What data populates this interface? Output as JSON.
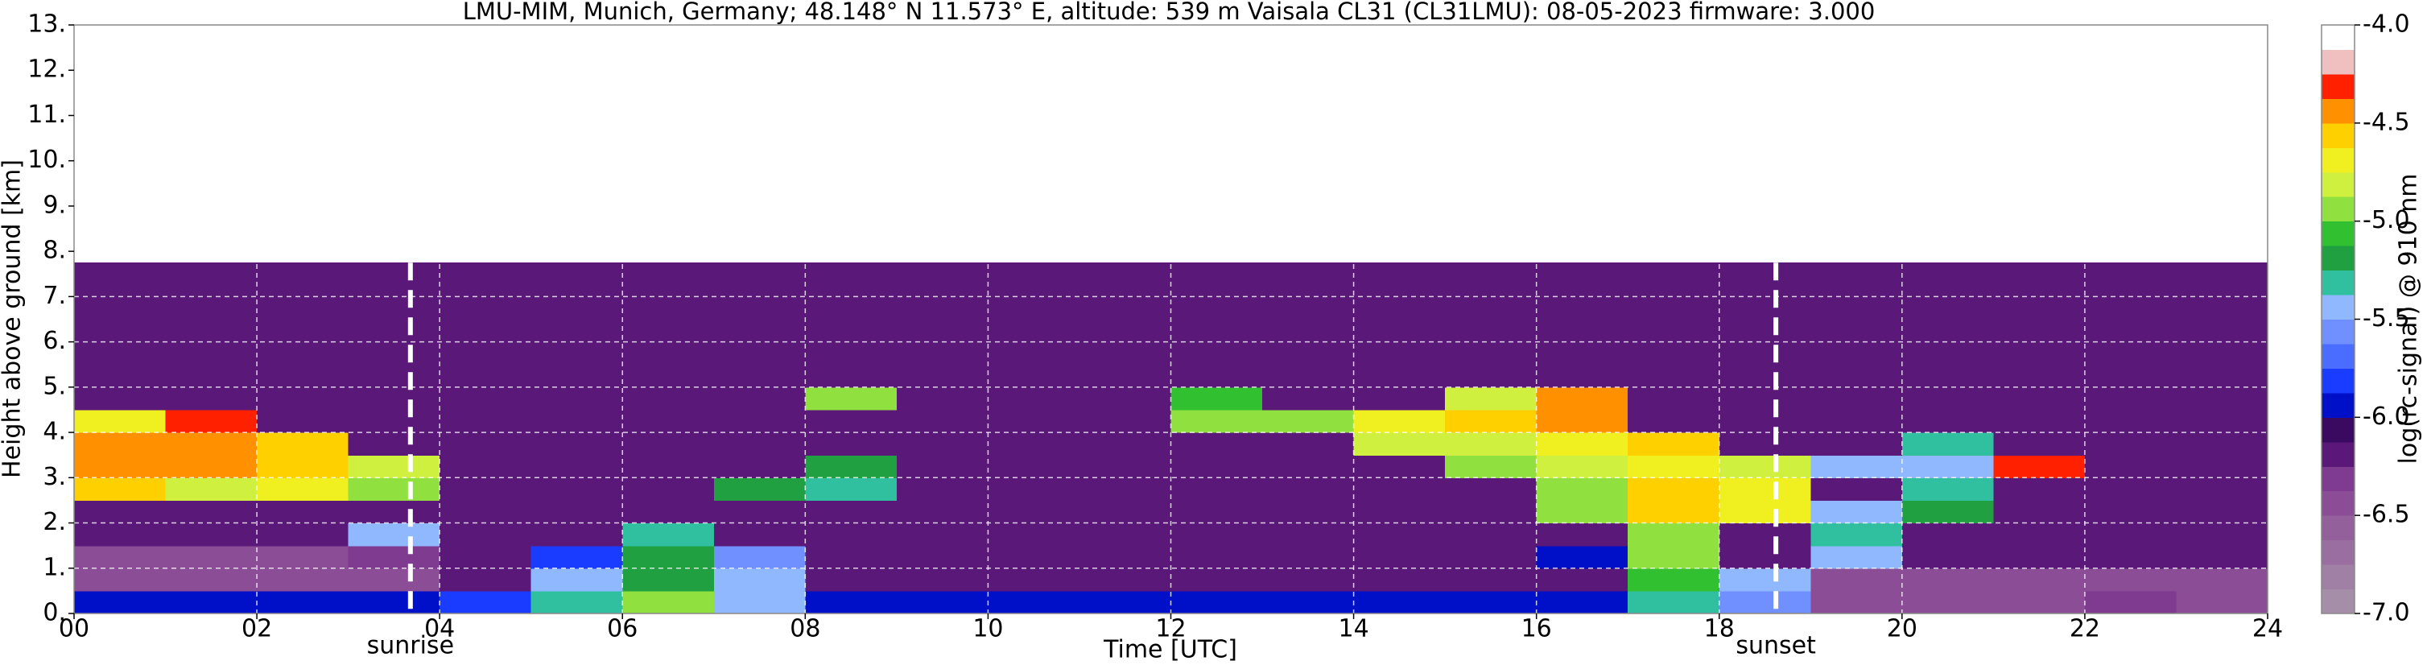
{
  "chart_data": {
    "type": "heatmap",
    "title": "LMU-MIM, Munich, Germany; 48.148° N 11.573° E, altitude: 539 m    Vaisala CL31 (CL31LMU): 08-05-2023    firmware: 3.000",
    "xlabel": "Time [UTC]",
    "ylabel": "Height above ground [km]",
    "colorbar_label": "log(rc-signal) @ 910 nm",
    "xlim": [
      0,
      24
    ],
    "ylim": [
      0,
      13
    ],
    "xticks": [
      {
        "value": 0,
        "label": "00"
      },
      {
        "value": 2,
        "label": "02"
      },
      {
        "value": 4,
        "label": "04"
      },
      {
        "value": 6,
        "label": "06"
      },
      {
        "value": 8,
        "label": "08"
      },
      10,
      12,
      14,
      16,
      18,
      20,
      22,
      24
    ],
    "yticks": [
      {
        "value": 0,
        "label": "0."
      },
      {
        "value": 1,
        "label": "1."
      },
      {
        "value": 2,
        "label": "2."
      },
      {
        "value": 3,
        "label": "3."
      },
      {
        "value": 4,
        "label": "4."
      },
      {
        "value": 5,
        "label": "5."
      },
      {
        "value": 6,
        "label": "6."
      },
      {
        "value": 7,
        "label": "7."
      },
      {
        "value": 8,
        "label": "8."
      },
      {
        "value": 9,
        "label": "9."
      },
      {
        "value": 10,
        "label": "10."
      },
      {
        "value": 11,
        "label": "11."
      },
      {
        "value": 12,
        "label": "12."
      },
      {
        "value": 13,
        "label": "13."
      }
    ],
    "grid": true,
    "grid_color": "#ffffff",
    "x_edges": [
      0,
      1,
      2,
      3,
      4,
      5,
      6,
      7,
      8,
      9,
      10,
      11,
      12,
      13,
      14,
      15,
      16,
      17,
      18,
      19,
      20,
      21,
      22,
      23,
      24
    ],
    "y_edges": [
      0,
      0.5,
      1,
      1.5,
      2,
      2.5,
      3,
      3.5,
      4,
      4.5,
      5,
      5.5,
      6,
      6.5,
      7,
      7.5,
      7.75
    ],
    "z": [
      [
        -5.9,
        -5.9,
        -5.9,
        -5.9,
        -5.8,
        -5.3,
        -4.9,
        -5.4,
        -5.9,
        -5.9,
        -6.0,
        -6.0,
        -6.0,
        -6.0,
        -6.0,
        -6.0,
        -6.0,
        -5.3,
        -5.6,
        -6.4,
        -6.4,
        -6.4,
        -6.3,
        -6.4
      ],
      [
        -6.4,
        -6.4,
        -6.4,
        -6.4,
        -6.2,
        -5.4,
        -5.2,
        -5.4,
        -6.2,
        -6.2,
        -6.2,
        -6.2,
        -6.2,
        -6.2,
        -6.2,
        -6.2,
        -6.2,
        -5.1,
        -5.4,
        -6.5,
        -6.5,
        -6.5,
        -6.5,
        -6.5
      ],
      [
        -6.5,
        -6.5,
        -6.5,
        -6.3,
        -6.2,
        -5.8,
        -5.2,
        -5.6,
        -6.2,
        -6.2,
        -6.2,
        -6.2,
        -6.2,
        -6.2,
        -6.2,
        -6.2,
        -6.0,
        -5.0,
        -6.2,
        -5.4,
        -6.2,
        -6.2,
        -6.2,
        -6.2
      ],
      [
        -6.2,
        -6.2,
        -6.2,
        -5.5,
        -6.2,
        -6.2,
        -5.3,
        -6.2,
        -6.2,
        -6.2,
        -6.2,
        -6.2,
        -6.2,
        -6.2,
        -6.2,
        -6.2,
        -6.2,
        -5.0,
        -6.2,
        -5.3,
        -6.2,
        -6.2,
        -6.2,
        -6.2
      ],
      [
        -6.2,
        -6.2,
        -6.2,
        -6.2,
        -6.2,
        -6.2,
        -6.2,
        -6.2,
        -6.2,
        -6.2,
        -6.2,
        -6.2,
        -6.2,
        -6.2,
        -6.2,
        -6.2,
        -4.9,
        -4.6,
        -4.7,
        -5.4,
        -5.2,
        -6.2,
        -6.2,
        -6.2
      ],
      [
        -4.6,
        -4.8,
        -4.7,
        -5.0,
        -6.2,
        -6.2,
        -6.2,
        -5.2,
        -5.3,
        -6.2,
        -6.2,
        -6.2,
        -6.2,
        -6.2,
        -6.2,
        -6.2,
        -5.0,
        -4.6,
        -4.7,
        -6.2,
        -5.3,
        -6.2,
        -6.2,
        -6.2
      ],
      [
        -4.5,
        -4.5,
        -4.6,
        -4.8,
        -6.2,
        -6.2,
        -6.2,
        -6.2,
        -5.2,
        -6.2,
        -6.2,
        -6.2,
        -6.2,
        -6.2,
        -6.2,
        -5.0,
        -4.8,
        -4.7,
        -4.8,
        -5.4,
        -5.5,
        -4.3,
        -6.2,
        -6.2
      ],
      [
        -4.5,
        -4.4,
        -4.6,
        -6.2,
        -6.2,
        -6.2,
        -6.2,
        -6.2,
        -6.2,
        -6.2,
        -6.2,
        -6.2,
        -6.2,
        -6.2,
        -4.8,
        -4.8,
        -4.7,
        -4.6,
        -6.2,
        -6.2,
        -5.3,
        -6.2,
        -6.2,
        -6.2
      ],
      [
        -4.7,
        -4.3,
        -6.2,
        -6.2,
        -6.2,
        -6.2,
        -6.2,
        -6.2,
        -6.2,
        -6.2,
        -6.2,
        -6.2,
        -5.0,
        -4.9,
        -4.7,
        -4.6,
        -4.4,
        -6.2,
        -6.2,
        -6.2,
        -6.2,
        -6.2,
        -6.2,
        -6.2
      ],
      [
        -6.2,
        -6.2,
        -6.2,
        -6.2,
        -6.2,
        -6.2,
        -6.2,
        -6.2,
        -4.9,
        -6.2,
        -6.2,
        -6.2,
        -5.1,
        -6.2,
        -6.2,
        -4.8,
        -4.5,
        -6.2,
        -6.2,
        -6.2,
        -6.2,
        -6.2,
        -6.2,
        -6.2
      ],
      [
        -6.2,
        -6.2,
        -6.2,
        -6.2,
        -6.2,
        -6.2,
        -6.2,
        -6.2,
        -6.2,
        -6.2,
        -6.2,
        -6.2,
        -6.2,
        -6.2,
        -6.2,
        -6.2,
        -6.2,
        -6.2,
        -6.2,
        -6.2,
        -6.2,
        -6.2,
        -6.2,
        -6.2
      ],
      [
        -6.2,
        -6.2,
        -6.2,
        -6.2,
        -6.2,
        -6.2,
        -6.2,
        -6.2,
        -6.2,
        -6.2,
        -6.2,
        -6.2,
        -6.2,
        -6.2,
        -6.2,
        -6.2,
        -6.2,
        -6.2,
        -6.2,
        -6.2,
        -6.2,
        -6.2,
        -6.2,
        -6.2
      ],
      [
        -6.2,
        -6.2,
        -6.2,
        -6.2,
        -6.2,
        -6.2,
        -6.2,
        -6.2,
        -6.2,
        -6.2,
        -6.2,
        -6.2,
        -6.2,
        -6.2,
        -6.2,
        -6.2,
        -6.2,
        -6.2,
        -6.2,
        -6.2,
        -6.2,
        -6.2,
        -6.2,
        -6.2
      ],
      [
        -6.2,
        -6.2,
        -6.2,
        -6.2,
        -6.2,
        -6.2,
        -6.2,
        -6.2,
        -6.2,
        -6.2,
        -6.2,
        -6.2,
        -6.2,
        -6.2,
        -6.2,
        -6.2,
        -6.2,
        -6.2,
        -6.2,
        -6.2,
        -6.2,
        -6.2,
        -6.2,
        -6.2
      ],
      [
        -6.2,
        -6.2,
        -6.2,
        -6.2,
        -6.2,
        -6.2,
        -6.2,
        -6.2,
        -6.2,
        -6.2,
        -6.2,
        -6.2,
        -6.2,
        -6.2,
        -6.2,
        -6.2,
        -6.2,
        -6.2,
        -6.2,
        -6.2,
        -6.2,
        -6.2,
        -6.2,
        -6.2
      ],
      [
        -6.2,
        -6.2,
        -6.2,
        -6.2,
        -6.2,
        -6.2,
        -6.2,
        -6.2,
        -6.2,
        -6.2,
        -6.2,
        -6.2,
        -6.2,
        -6.2,
        -6.2,
        -6.2,
        -6.2,
        -6.2,
        -6.2,
        -6.2,
        -6.2,
        -6.2,
        -6.2,
        -6.2
      ]
    ],
    "clim": [
      -7,
      -4
    ],
    "color_levels": [
      -7,
      -6.875,
      -6.75,
      -6.625,
      -6.5,
      -6.375,
      -6.25,
      -6.125,
      -6,
      -5.875,
      -5.75,
      -5.625,
      -5.5,
      -5.375,
      -5.25,
      -5.125,
      -5,
      -4.875,
      -4.75,
      -4.625,
      -4.5,
      -4.375,
      -4.25,
      -4.125,
      -4
    ],
    "colors": [
      "#a58fa8",
      "#a080a5",
      "#9a6ea0",
      "#94609b",
      "#8a4d96",
      "#7f3b90",
      "#5a1878",
      "#3a0a60",
      "#0010c8",
      "#1a3cff",
      "#4a6cff",
      "#7090ff",
      "#90b8ff",
      "#30c0a0",
      "#20a040",
      "#30c030",
      "#90e040",
      "#d0f040",
      "#f0f020",
      "#ffd000",
      "#ff9000",
      "#ff2000",
      "#f0c0c0",
      "#ffffff"
    ],
    "cticks": [
      {
        "value": -4,
        "label": "-4.0"
      },
      -4.5,
      {
        "value": -5,
        "label": "-5.0"
      },
      -5.5,
      {
        "value": -6,
        "label": "-6.0"
      },
      -6.5,
      {
        "value": -7,
        "label": "-7.0"
      }
    ],
    "annotations": [
      {
        "text": "sunrise",
        "x": 3.68
      },
      {
        "text": "sunset",
        "x": 18.62
      }
    ]
  }
}
